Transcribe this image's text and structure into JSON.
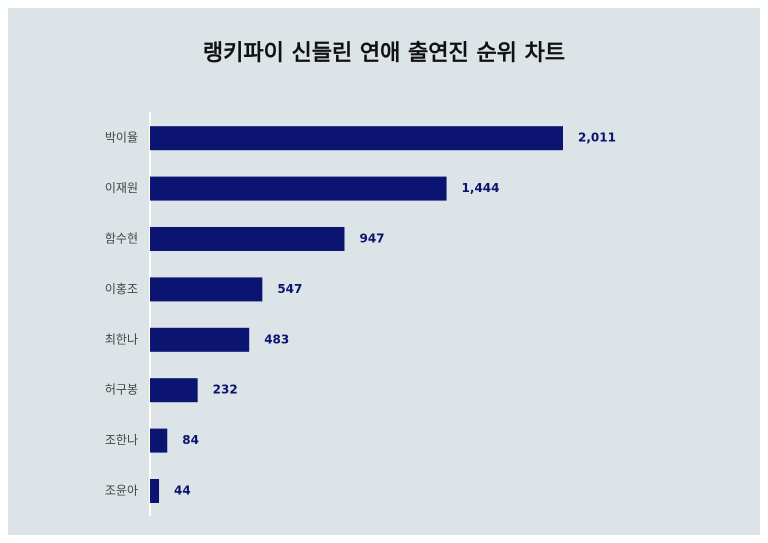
{
  "chart_data": {
    "type": "bar",
    "orientation": "horizontal",
    "title": "랭키파이 신들린 연애 출연진 순위 차트",
    "categories": [
      "박이율",
      "이재원",
      "함수현",
      "이홍조",
      "최한나",
      "허구봉",
      "조한나",
      "조윤아"
    ],
    "values": [
      2011,
      1444,
      947,
      547,
      483,
      232,
      84,
      44
    ],
    "value_labels": [
      "2,011",
      "1,444",
      "947",
      "547",
      "483",
      "232",
      "84",
      "44"
    ],
    "color": "#0b1470"
  }
}
